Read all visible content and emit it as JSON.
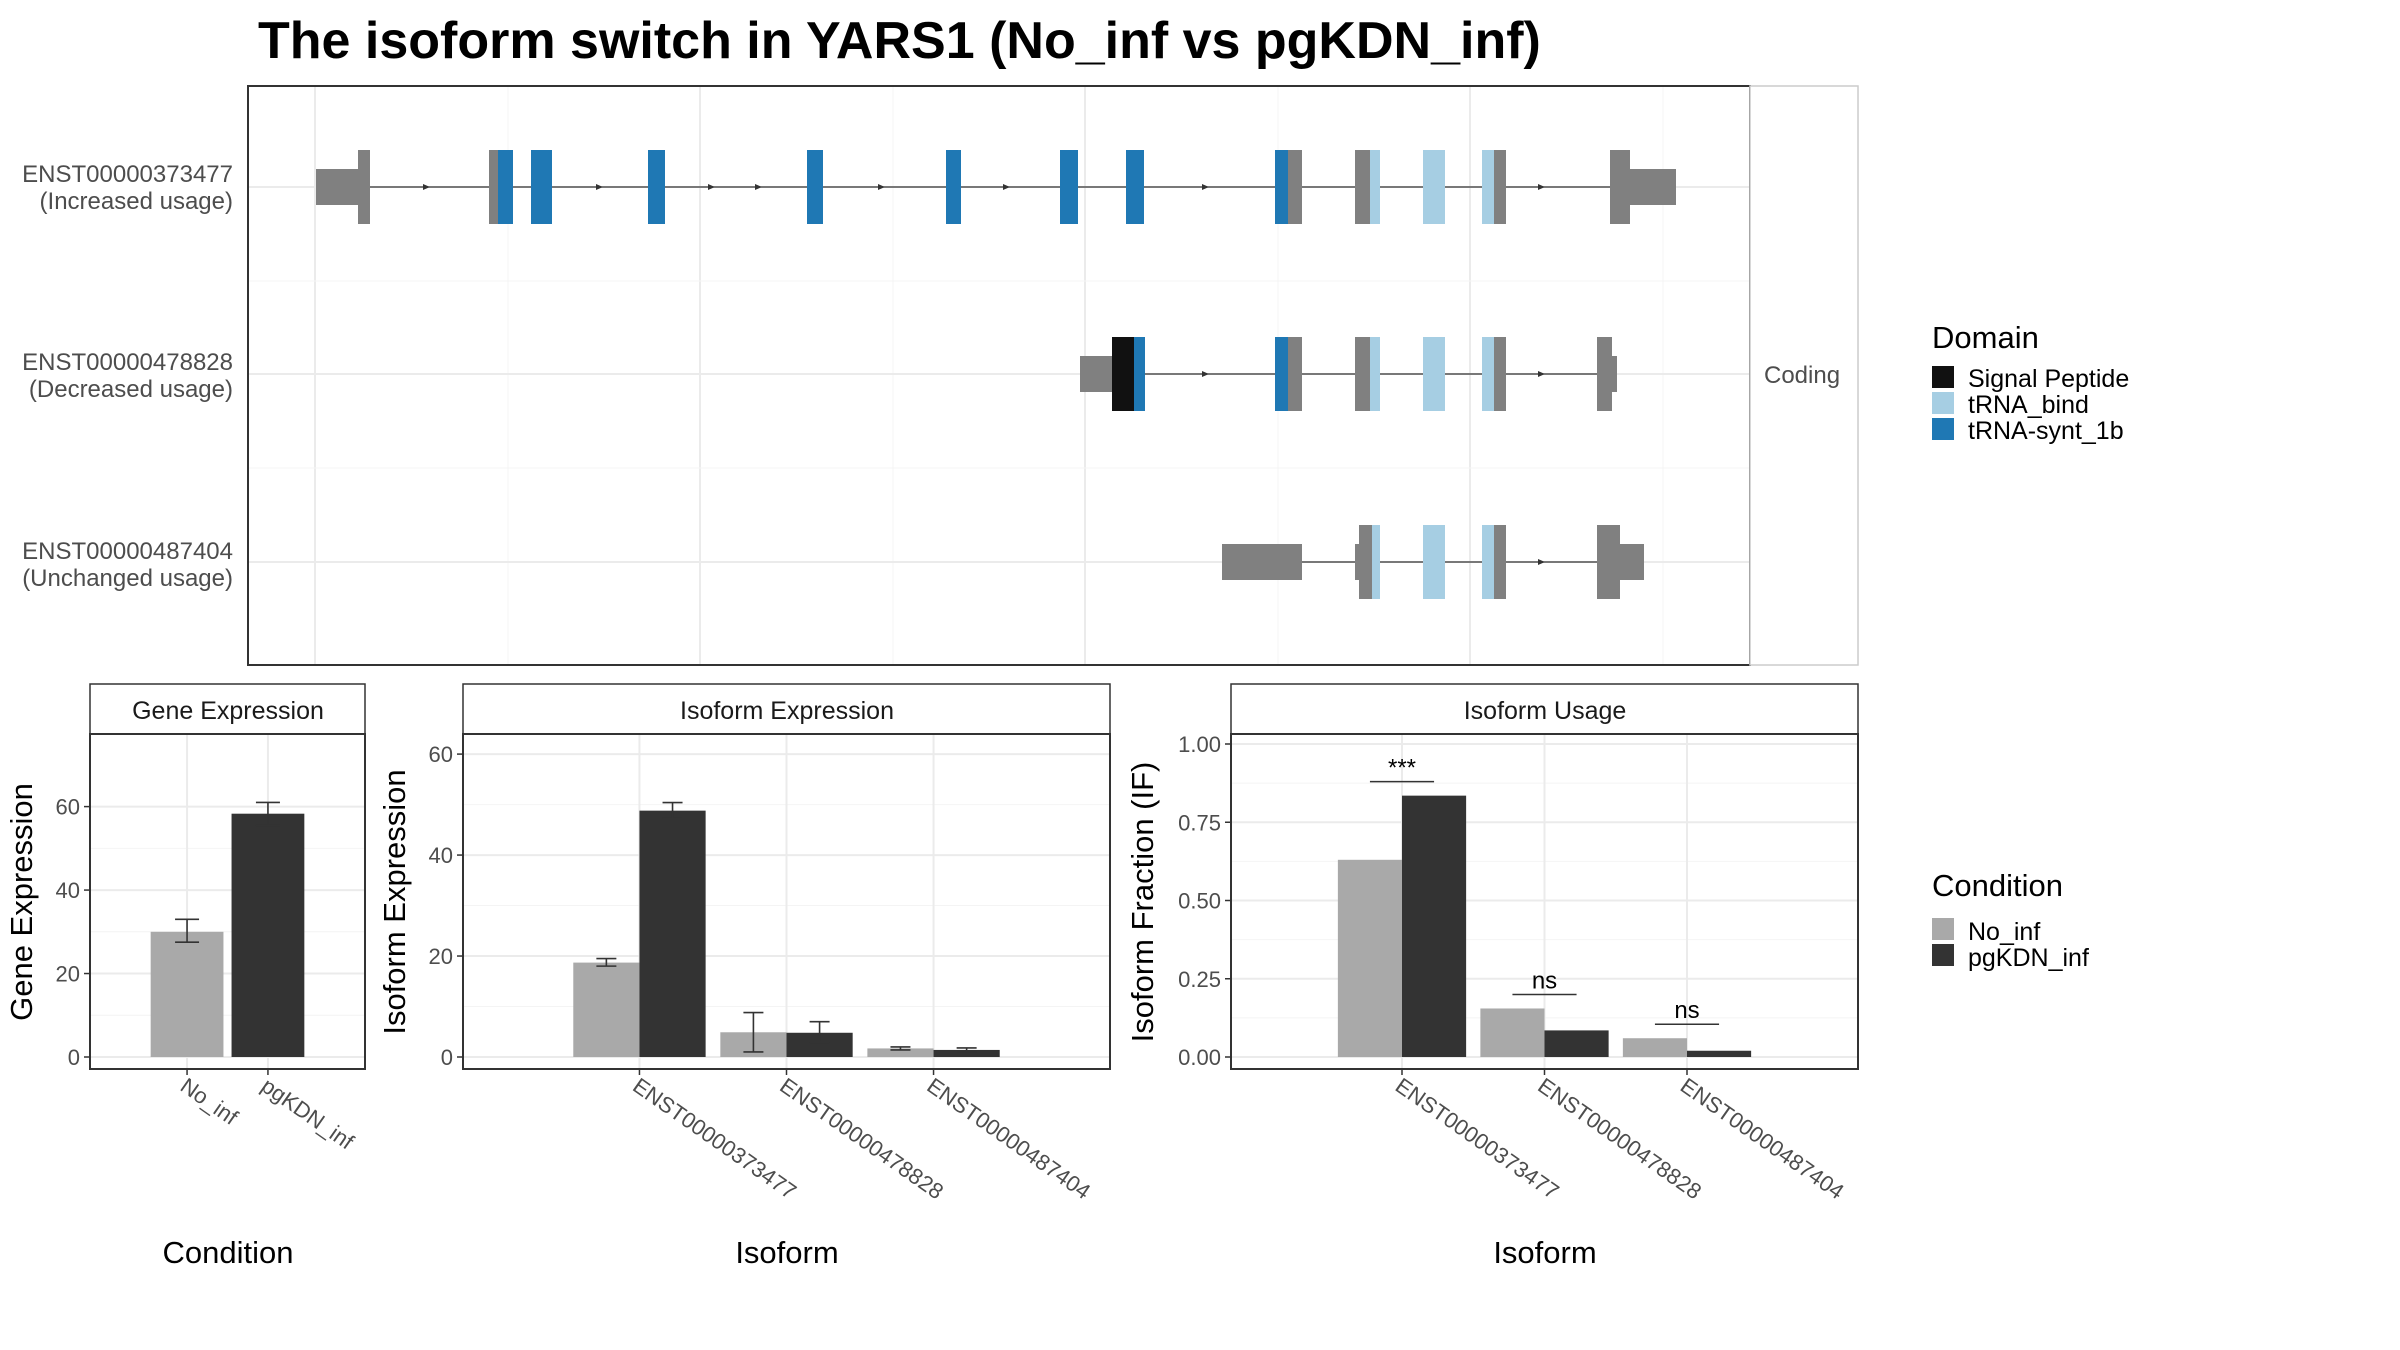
{
  "title": "The isoform switch in YARS1 (No_inf vs pgKDN_inf)",
  "colors": {
    "No_inf": "#a9a9a9",
    "pgKDN_inf": "#333333",
    "Signal Peptide": "#111111",
    "tRNA_bind": "#a6cee3",
    "tRNA-synt_1b": "#1f78b4",
    "exon": "#808080"
  },
  "structure": {
    "facet_label": "Coding",
    "isoforms": [
      {
        "id": "ENST00000373477",
        "usage": "(Increased usage)"
      },
      {
        "id": "ENST00000478828",
        "usage": "(Decreased usage)"
      },
      {
        "id": "ENST00000487404",
        "usage": "(Unchanged usage)"
      }
    ],
    "domain_legend": {
      "title": "Domain",
      "items": [
        "Signal Peptide",
        "tRNA_bind",
        "tRNA-synt_1b"
      ]
    }
  },
  "condition_legend": {
    "title": "Condition",
    "items": [
      "No_inf",
      "pgKDN_inf"
    ]
  },
  "chart_data": [
    {
      "type": "bar",
      "title": "Gene Expression",
      "xlabel": "Condition",
      "ylabel": "Gene Expression",
      "categories": [
        "No_inf",
        "pgKDN_inf"
      ],
      "values": [
        30,
        58.3
      ],
      "error_low": [
        27.5,
        55.5
      ],
      "error_high": [
        33,
        61
      ],
      "ylim": [
        0,
        75
      ],
      "yticks": [
        "0",
        "20",
        "40",
        "60"
      ]
    },
    {
      "type": "bar",
      "title": "Isoform Expression",
      "xlabel": "Isoform",
      "ylabel": "Isoform Expression",
      "categories": [
        "ENST00000373477",
        "ENST00000478828",
        "ENST00000487404"
      ],
      "series": [
        {
          "name": "No_inf",
          "values": [
            18.7,
            4.9,
            1.7
          ],
          "error_low": [
            18,
            1,
            1.4
          ],
          "error_high": [
            19.5,
            8.8,
            2.0
          ]
        },
        {
          "name": "pgKDN_inf",
          "values": [
            48.8,
            4.8,
            1.4
          ],
          "error_low": [
            47.3,
            2.9,
            1.0
          ],
          "error_high": [
            50.4,
            7.0,
            1.8
          ]
        }
      ],
      "ylim": [
        0,
        62
      ],
      "yticks": [
        "0",
        "20",
        "40",
        "60"
      ]
    },
    {
      "type": "bar",
      "title": "Isoform Usage",
      "xlabel": "Isoform",
      "ylabel": "Isoform Fraction (IF)",
      "categories": [
        "ENST00000373477",
        "ENST00000478828",
        "ENST00000487404"
      ],
      "series": [
        {
          "name": "No_inf",
          "values": [
            0.63,
            0.155,
            0.06
          ]
        },
        {
          "name": "pgKDN_inf",
          "values": [
            0.835,
            0.085,
            0.02
          ]
        }
      ],
      "significance": [
        "***",
        "ns",
        "ns"
      ],
      "ylim": [
        0,
        1.0
      ],
      "yticks": [
        "0.00",
        "0.25",
        "0.50",
        "0.75",
        "1.00"
      ]
    }
  ]
}
